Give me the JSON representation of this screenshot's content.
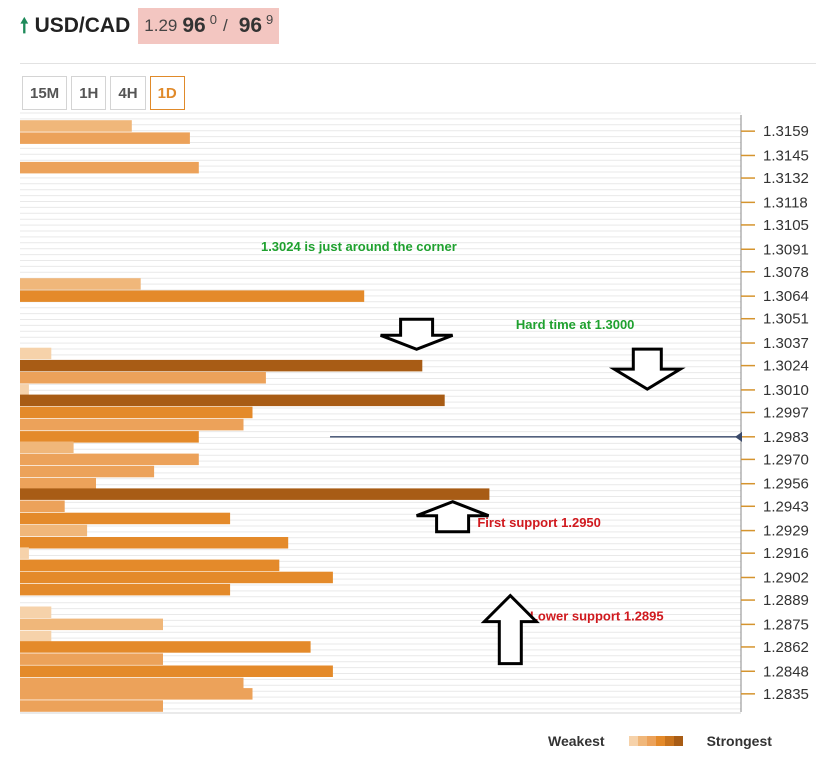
{
  "header": {
    "pair": "USD/CAD",
    "bid_prefix": "1.29",
    "bid_big": "96",
    "bid_sup": "0",
    "separator": "/",
    "ask_big": "96",
    "ask_sup": "9"
  },
  "tabs": [
    {
      "label": "15M",
      "active": false
    },
    {
      "label": "1H",
      "active": false
    },
    {
      "label": "4H",
      "active": false
    },
    {
      "label": "1D",
      "active": true
    }
  ],
  "legend": {
    "weakest": "Weakest",
    "strongest": "Strongest",
    "colors": [
      "#f6d2aa",
      "#f0b77a",
      "#eca25a",
      "#e48a2a",
      "#c8731d",
      "#a85c15"
    ]
  },
  "colors": {
    "accent": "#e08a2a",
    "current_price_line": "#3a4a6b",
    "note_green": "#1fa12f",
    "note_red": "#d0191e"
  },
  "chart_data": {
    "type": "bar",
    "orientation": "horizontal",
    "description": "Technical confluence detector: horizontal bars at price levels; bar length = confluence strength, color = strength (light = weakest, dark = strongest).",
    "ylim": [
      1.2828,
      1.3166
    ],
    "y_ticks": [
      "1.3159",
      "1.3145",
      "1.3132",
      "1.3118",
      "1.3105",
      "1.3091",
      "1.3078",
      "1.3064",
      "1.3051",
      "1.3037",
      "1.3024",
      "1.3010",
      "1.2997",
      "1.2983",
      "1.2970",
      "1.2956",
      "1.2943",
      "1.2929",
      "1.2916",
      "1.2902",
      "1.2889",
      "1.2875",
      "1.2862",
      "1.2848",
      "1.2835"
    ],
    "current_price": 1.2983,
    "bar_strength_max": 100,
    "bars": [
      {
        "price": 1.3162,
        "strength": 25,
        "level": 1
      },
      {
        "price": 1.3155,
        "strength": 38,
        "level": 2
      },
      {
        "price": 1.3138,
        "strength": 40,
        "level": 2
      },
      {
        "price": 1.3071,
        "strength": 27,
        "level": 1
      },
      {
        "price": 1.3064,
        "strength": 77,
        "level": 3
      },
      {
        "price": 1.3031,
        "strength": 7,
        "level": 0
      },
      {
        "price": 1.3024,
        "strength": 90,
        "level": 5
      },
      {
        "price": 1.3017,
        "strength": 55,
        "level": 2
      },
      {
        "price": 1.301,
        "strength": 2,
        "level": 0
      },
      {
        "price": 1.3004,
        "strength": 95,
        "level": 5
      },
      {
        "price": 1.2997,
        "strength": 52,
        "level": 3
      },
      {
        "price": 1.299,
        "strength": 50,
        "level": 2
      },
      {
        "price": 1.2983,
        "strength": 40,
        "level": 3
      },
      {
        "price": 1.2977,
        "strength": 12,
        "level": 1
      },
      {
        "price": 1.297,
        "strength": 40,
        "level": 2
      },
      {
        "price": 1.2963,
        "strength": 30,
        "level": 2
      },
      {
        "price": 1.2956,
        "strength": 17,
        "level": 2
      },
      {
        "price": 1.295,
        "strength": 105,
        "level": 5
      },
      {
        "price": 1.2943,
        "strength": 10,
        "level": 2
      },
      {
        "price": 1.2936,
        "strength": 47,
        "level": 3
      },
      {
        "price": 1.2929,
        "strength": 15,
        "level": 1
      },
      {
        "price": 1.2922,
        "strength": 60,
        "level": 3
      },
      {
        "price": 1.2916,
        "strength": 2,
        "level": 0
      },
      {
        "price": 1.2909,
        "strength": 58,
        "level": 3
      },
      {
        "price": 1.2902,
        "strength": 70,
        "level": 3
      },
      {
        "price": 1.2895,
        "strength": 47,
        "level": 3
      },
      {
        "price": 1.2882,
        "strength": 7,
        "level": 0
      },
      {
        "price": 1.2875,
        "strength": 32,
        "level": 1
      },
      {
        "price": 1.2868,
        "strength": 7,
        "level": 0
      },
      {
        "price": 1.2862,
        "strength": 65,
        "level": 3
      },
      {
        "price": 1.2855,
        "strength": 32,
        "level": 2
      },
      {
        "price": 1.2848,
        "strength": 70,
        "level": 3
      },
      {
        "price": 1.2841,
        "strength": 50,
        "level": 2
      },
      {
        "price": 1.2835,
        "strength": 52,
        "level": 2
      },
      {
        "price": 1.2828,
        "strength": 32,
        "level": 2
      }
    ],
    "annotations": [
      {
        "text": "1.3024 is just around the corner",
        "color": "green",
        "price": 1.3093,
        "align_frac": 0.47
      },
      {
        "text": "Hard time at 1.3000",
        "color": "green",
        "price": 1.3048,
        "align_frac": 0.77
      },
      {
        "text": "First support 1.2950",
        "color": "red",
        "price": 1.2934,
        "align_frac": 0.72
      },
      {
        "text": "Lower support 1.2895",
        "color": "red",
        "price": 1.288,
        "align_frac": 0.8
      }
    ],
    "arrows": [
      {
        "direction": "down",
        "price": 1.3042,
        "align_frac": 0.55,
        "size": "small"
      },
      {
        "direction": "down",
        "price": 1.3022,
        "align_frac": 0.87,
        "size": "medium"
      },
      {
        "direction": "up",
        "price": 1.2937,
        "align_frac": 0.6,
        "size": "small"
      },
      {
        "direction": "up",
        "price": 1.2872,
        "align_frac": 0.68,
        "size": "tall"
      }
    ]
  }
}
